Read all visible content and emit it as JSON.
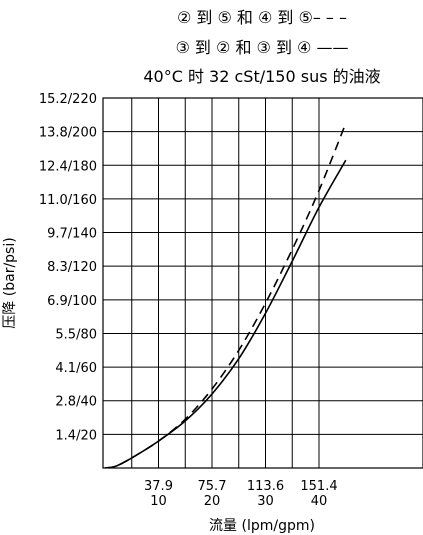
{
  "chart_data": {
    "type": "line",
    "title_lines": [
      "② 到 ⑤ 和 ④ 到 ⑤– – –",
      "③ 到 ② 和 ③ 到 ④ ——",
      "40°C 时 32 cSt/150 sus 的油液"
    ],
    "xlabel": "流量 (lpm/gpm)",
    "ylabel": "压降 (bar/psi)",
    "x_ticks": [
      {
        "value": 10,
        "lpm": "37.9",
        "gpm": "10"
      },
      {
        "value": 20,
        "lpm": "75.7",
        "gpm": "20"
      },
      {
        "value": 30,
        "lpm": "113.6",
        "gpm": "30"
      },
      {
        "value": 40,
        "lpm": "151.4",
        "gpm": "40"
      }
    ],
    "y_ticks": [
      {
        "value": 20,
        "label": "1.4/20"
      },
      {
        "value": 40,
        "label": "2.8/40"
      },
      {
        "value": 60,
        "label": "4.1/60"
      },
      {
        "value": 80,
        "label": "5.5/80"
      },
      {
        "value": 100,
        "label": "6.9/100"
      },
      {
        "value": 120,
        "label": "8.3/120"
      },
      {
        "value": 140,
        "label": "9.7/140"
      },
      {
        "value": 160,
        "label": "11.0/160"
      },
      {
        "value": 180,
        "label": "12.4/180"
      },
      {
        "value": 200,
        "label": "13.8/200"
      },
      {
        "value": 220,
        "label": "15.2/220"
      }
    ],
    "xlim": [
      0,
      45
    ],
    "ylim": [
      0,
      220
    ],
    "grid": true,
    "series": [
      {
        "style": "dashed",
        "x": [
          0,
          2,
          5,
          10,
          15,
          20,
          25,
          30,
          35,
          40,
          45
        ],
        "y": [
          0,
          1,
          6,
          16,
          29,
          47,
          70,
          98,
          130,
          165,
          205
        ]
      },
      {
        "style": "solid",
        "x": [
          0,
          2,
          5,
          10,
          15,
          20,
          25,
          30,
          35,
          40,
          45
        ],
        "y": [
          0,
          1,
          6,
          16,
          28,
          44,
          65,
          92,
          123,
          155,
          183
        ]
      }
    ]
  }
}
